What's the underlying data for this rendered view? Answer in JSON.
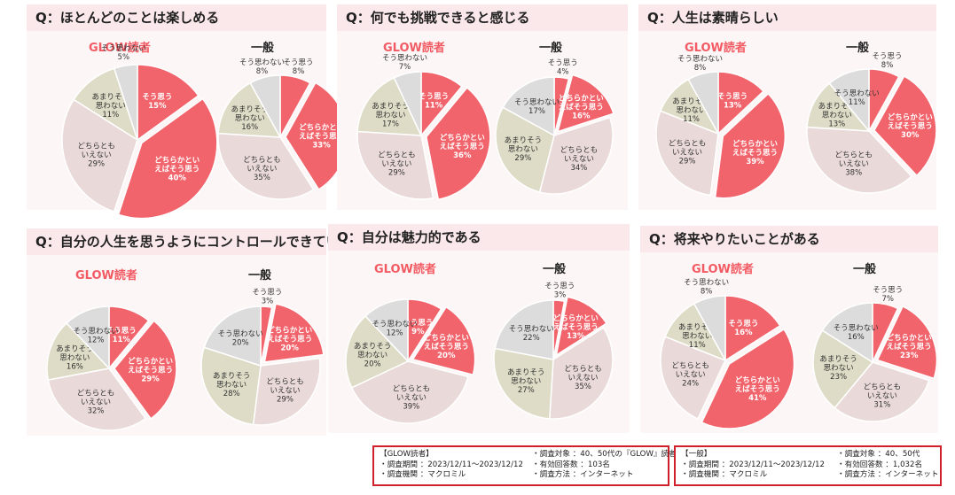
{
  "panels": [
    {
      "question": "Q：ほとんどのことは楽しめる",
      "charts": [
        {
          "heading": "GLOW読者",
          "slices": [
            {
              "label": "そう思う",
              "value": 15
            },
            {
              "label": "どちらかといえばそう思う",
              "value": 40
            },
            {
              "label": "どちらともいえない",
              "value": 29
            },
            {
              "label": "あまりそう思わない",
              "value": 11
            },
            {
              "label": "そう思わない",
              "value": 5
            }
          ]
        },
        {
          "heading": "一般",
          "slices": [
            {
              "label": "そう思う",
              "value": 8
            },
            {
              "label": "どちらかといえばそう思う",
              "value": 33
            },
            {
              "label": "どちらともいえない",
              "value": 35
            },
            {
              "label": "あまりそう思わない",
              "value": 16
            },
            {
              "label": "そう思わない",
              "value": 8
            }
          ]
        }
      ]
    },
    {
      "question": "Q：何でも挑戦できると感じる",
      "charts": [
        {
          "heading": "GLOW読者",
          "slices": [
            {
              "label": "そう思う",
              "value": 11
            },
            {
              "label": "どちらかといえばそう思う",
              "value": 36
            },
            {
              "label": "どちらともいえない",
              "value": 29
            },
            {
              "label": "あまりそう思わない",
              "value": 17
            },
            {
              "label": "そう思わない",
              "value": 7
            }
          ]
        },
        {
          "heading": "一般",
          "slices": [
            {
              "label": "そう思う",
              "value": 4
            },
            {
              "label": "どちらかといえばそう思う",
              "value": 16
            },
            {
              "label": "どちらともいえない",
              "value": 34
            },
            {
              "label": "あまりそう思わない",
              "value": 29
            },
            {
              "label": "そう思わない",
              "value": 17
            }
          ]
        }
      ]
    },
    {
      "question": "Q：人生は素晴らしい",
      "charts": [
        {
          "heading": "GLOW読者",
          "slices": [
            {
              "label": "そう思う",
              "value": 13
            },
            {
              "label": "どちらかといえばそう思う",
              "value": 39
            },
            {
              "label": "どちらともいえない",
              "value": 29
            },
            {
              "label": "あまりそう思わない",
              "value": 11
            },
            {
              "label": "そう思わない",
              "value": 8
            }
          ]
        },
        {
          "heading": "一般",
          "slices": [
            {
              "label": "そう思う",
              "value": 8
            },
            {
              "label": "どちらかといえばそう思う",
              "value": 30
            },
            {
              "label": "どちらともいえない",
              "value": 38
            },
            {
              "label": "あまりそう思わない",
              "value": 13
            },
            {
              "label": "そう思わない",
              "value": 11
            }
          ]
        }
      ]
    },
    {
      "question": "Q：自分の人生を思うようにコントロールできている",
      "charts": [
        {
          "heading": "GLOW読者",
          "slices": [
            {
              "label": "そう思う",
              "value": 11
            },
            {
              "label": "どちらかといえばそう思う",
              "value": 29
            },
            {
              "label": "どちらともいえない",
              "value": 32
            },
            {
              "label": "あまりそう思わない",
              "value": 16
            },
            {
              "label": "そう思わない",
              "value": 12
            }
          ]
        },
        {
          "heading": "一般",
          "slices": [
            {
              "label": "そう思う",
              "value": 3
            },
            {
              "label": "どちらかといえばそう思う",
              "value": 20
            },
            {
              "label": "どちらともいえない",
              "value": 29
            },
            {
              "label": "あまりそう思わない",
              "value": 28
            },
            {
              "label": "そう思わない",
              "value": 20
            }
          ]
        }
      ]
    },
    {
      "question": "Q：自分は魅力的である",
      "charts": [
        {
          "heading": "GLOW読者",
          "slices": [
            {
              "label": "そう思う",
              "value": 9
            },
            {
              "label": "どちらかといえばそう思う",
              "value": 20
            },
            {
              "label": "どちらともいえない",
              "value": 39
            },
            {
              "label": "あまりそう思わない",
              "value": 20
            },
            {
              "label": "そう思わない",
              "value": 12
            }
          ]
        },
        {
          "heading": "一般",
          "slices": [
            {
              "label": "そう思う",
              "value": 3
            },
            {
              "label": "どちらかといえばそう思う",
              "value": 13
            },
            {
              "label": "どちらともいえない",
              "value": 35
            },
            {
              "label": "あまりそう思わない",
              "value": 27
            },
            {
              "label": "そう思わない",
              "value": 22
            }
          ]
        }
      ]
    },
    {
      "question": "Q：将来やりたいことがある",
      "charts": [
        {
          "heading": "GLOW読者",
          "slices": [
            {
              "label": "そう思う",
              "value": 16
            },
            {
              "label": "どちらかといえばそう思う",
              "value": 41
            },
            {
              "label": "どちらともいえない",
              "value": 24
            },
            {
              "label": "あまりそう思わない",
              "value": 11
            },
            {
              "label": "そう思わない",
              "value": 8
            }
          ]
        },
        {
          "heading": "一般",
          "slices": [
            {
              "label": "そう思う",
              "value": 7
            },
            {
              "label": "どちらかといえばそう思う",
              "value": 23
            },
            {
              "label": "どちらともいえない",
              "value": 31
            },
            {
              "label": "あまりそう思わない",
              "value": 23
            },
            {
              "label": "そう思わない",
              "value": 16
            }
          ]
        }
      ]
    }
  ],
  "colors": {
    "そう思う": "#f2646c",
    "どちらかといえばそう思う": "#f2646c",
    "どちらともいえない": "#ead9d9",
    "あまりそう思わない": "#dedcc6",
    "そう思わない": "#dcdcdc"
  },
  "notes": {
    "glow": {
      "title": "【GLOW読者】",
      "period": "・調査期間 ：2023/12/11～2023/12/12",
      "org": "・調査機関 ：マクロミル",
      "target": "・調査対象 ：40、50代の『GLOW』読者",
      "responses": "・有効回答数 ：103名",
      "method": "・調査方法 ：インターネット"
    },
    "ippan": {
      "title": "【一般】",
      "period": "・調査期間 ：2023/12/11～2023/12/12",
      "org": "・調査機関 ：マクロミル",
      "target": "・調査対象 ：40、50代",
      "responses": "・有効回答数 ：1,032名",
      "method": "・調査方法 ：インターネット"
    }
  },
  "chart_data": [
    {
      "type": "pie",
      "title": "Q：ほとんどのことは楽しめる",
      "series": [
        {
          "name": "GLOW読者",
          "categories": [
            "そう思う",
            "どちらかといえばそう思う",
            "どちらともいえない",
            "あまりそう思わない",
            "そう思わない"
          ],
          "values": [
            15,
            40,
            29,
            11,
            5
          ]
        },
        {
          "name": "一般",
          "categories": [
            "そう思う",
            "どちらかといえばそう思う",
            "どちらともいえない",
            "あまりそう思わない",
            "そう思わない"
          ],
          "values": [
            8,
            33,
            35,
            16,
            8
          ]
        }
      ]
    },
    {
      "type": "pie",
      "title": "Q：何でも挑戦できると感じる",
      "series": [
        {
          "name": "GLOW読者",
          "categories": [
            "そう思う",
            "どちらかといえばそう思う",
            "どちらともいえない",
            "あまりそう思わない",
            "そう思わない"
          ],
          "values": [
            11,
            36,
            29,
            17,
            7
          ]
        },
        {
          "name": "一般",
          "categories": [
            "そう思う",
            "どちらかといえばそう思う",
            "どちらともいえない",
            "あまりそう思わない",
            "そう思わない"
          ],
          "values": [
            4,
            16,
            34,
            29,
            17
          ]
        }
      ]
    },
    {
      "type": "pie",
      "title": "Q：人生は素晴らしい",
      "series": [
        {
          "name": "GLOW読者",
          "categories": [
            "そう思う",
            "どちらかといえばそう思う",
            "どちらともいえない",
            "あまりそう思わない",
            "そう思わない"
          ],
          "values": [
            13,
            39,
            29,
            11,
            8
          ]
        },
        {
          "name": "一般",
          "categories": [
            "そう思う",
            "どちらかといえばそう思う",
            "どちらともいえない",
            "あまりそう思わない",
            "そう思わない"
          ],
          "values": [
            8,
            30,
            38,
            13,
            11
          ]
        }
      ]
    },
    {
      "type": "pie",
      "title": "Q：自分の人生を思うようにコントロールできている",
      "series": [
        {
          "name": "GLOW読者",
          "categories": [
            "そう思う",
            "どちらかといえばそう思う",
            "どちらともいえない",
            "あまりそう思わない",
            "そう思わない"
          ],
          "values": [
            11,
            29,
            32,
            16,
            12
          ]
        },
        {
          "name": "一般",
          "categories": [
            "そう思う",
            "どちらかといえばそう思う",
            "どちらともいえない",
            "あまりそう思わない",
            "そう思わない"
          ],
          "values": [
            3,
            20,
            29,
            28,
            20
          ]
        }
      ]
    },
    {
      "type": "pie",
      "title": "Q：自分は魅力的である",
      "series": [
        {
          "name": "GLOW読者",
          "categories": [
            "そう思う",
            "どちらかといえばそう思う",
            "どちらともいえない",
            "あまりそう思わない",
            "そう思わない"
          ],
          "values": [
            9,
            20,
            39,
            20,
            12
          ]
        },
        {
          "name": "一般",
          "categories": [
            "そう思う",
            "どちらかといえばそう思う",
            "どちらともいえない",
            "あまりそう思わない",
            "そう思わない"
          ],
          "values": [
            3,
            13,
            35,
            27,
            22
          ]
        }
      ]
    },
    {
      "type": "pie",
      "title": "Q：将来やりたいことがある",
      "series": [
        {
          "name": "GLOW読者",
          "categories": [
            "そう思う",
            "どちらかといえばそう思う",
            "どちらともいえない",
            "あまりそう思わない",
            "そう思わない"
          ],
          "values": [
            16,
            41,
            24,
            11,
            8
          ]
        },
        {
          "name": "一般",
          "categories": [
            "そう思う",
            "どちらかといえばそう思う",
            "どちらともいえない",
            "あまりそう思わない",
            "そう思わない"
          ],
          "values": [
            7,
            23,
            31,
            23,
            16
          ]
        }
      ]
    }
  ]
}
